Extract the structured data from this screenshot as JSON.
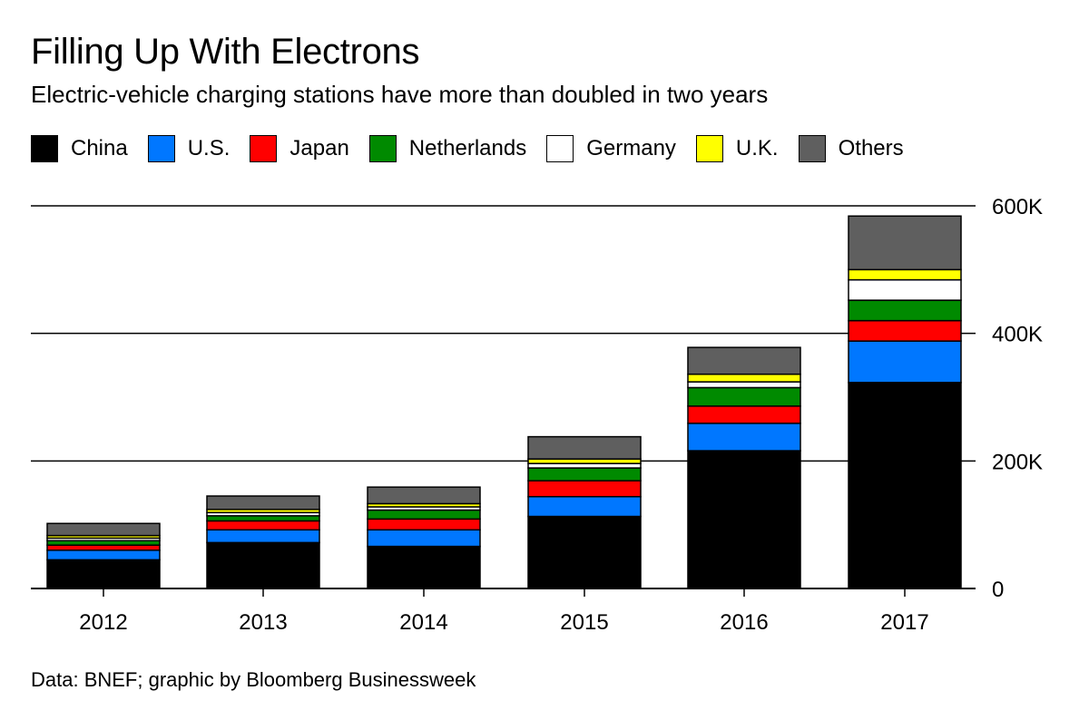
{
  "header": {
    "title": "Filling Up With Electrons",
    "subtitle": "Electric-vehicle charging stations have more than doubled in two years"
  },
  "legend": {
    "items": [
      {
        "label": "China",
        "color": "#000000"
      },
      {
        "label": "U.S.",
        "color": "#0077ff"
      },
      {
        "label": "Japan",
        "color": "#ff0000"
      },
      {
        "label": "Netherlands",
        "color": "#008a00"
      },
      {
        "label": "Germany",
        "color": "#ffffff"
      },
      {
        "label": "U.K.",
        "color": "#ffff00"
      },
      {
        "label": "Others",
        "color": "#5f5f5f"
      }
    ]
  },
  "chart_data": {
    "type": "bar",
    "stacked": true,
    "categories": [
      "2012",
      "2013",
      "2014",
      "2015",
      "2016",
      "2017"
    ],
    "series": [
      {
        "name": "China",
        "color": "#000000",
        "values": [
          45000,
          72000,
          66000,
          113000,
          216000,
          323000
        ]
      },
      {
        "name": "U.S.",
        "color": "#0077ff",
        "values": [
          15000,
          20000,
          26000,
          31000,
          43000,
          65000
        ]
      },
      {
        "name": "Japan",
        "color": "#ff0000",
        "values": [
          8000,
          14000,
          17000,
          25000,
          27000,
          32000
        ]
      },
      {
        "name": "Netherlands",
        "color": "#008a00",
        "values": [
          7000,
          8000,
          14000,
          20000,
          29000,
          32000
        ]
      },
      {
        "name": "Germany",
        "color": "#ffffff",
        "values": [
          4000,
          5000,
          5000,
          7000,
          9000,
          32000
        ]
      },
      {
        "name": "U.K.",
        "color": "#ffff00",
        "values": [
          4000,
          5000,
          5000,
          7000,
          12000,
          16000
        ]
      },
      {
        "name": "Others",
        "color": "#5f5f5f",
        "values": [
          19000,
          21000,
          26000,
          35000,
          42000,
          84000
        ]
      }
    ],
    "ylim": [
      0,
      600000
    ],
    "yticks": [
      0,
      200000,
      400000,
      600000
    ],
    "ytick_labels": [
      "0",
      "200K",
      "400K",
      "600K"
    ],
    "y_axis_side": "right",
    "grid": true,
    "legend_position": "top"
  },
  "footer": {
    "source": "Data: BNEF; graphic by Bloomberg Businessweek"
  }
}
